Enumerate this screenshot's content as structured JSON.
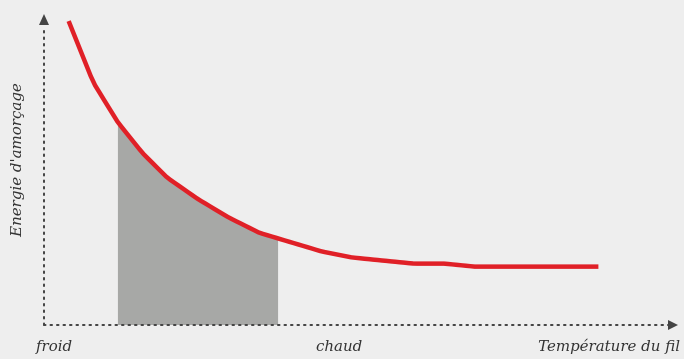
{
  "chart_data": {
    "type": "area",
    "title": "",
    "xlabel": "Température du fil",
    "ylabel": "Energie d'amorçage",
    "x_tick_labels": [
      "froid",
      "chaud"
    ],
    "grid": false,
    "legend": "none",
    "curve": {
      "x": [
        0.04,
        0.08,
        0.12,
        0.16,
        0.2,
        0.25,
        0.3,
        0.35,
        0.4,
        0.45,
        0.5,
        0.55,
        0.6,
        0.65,
        0.7,
        0.75,
        0.8,
        0.85,
        0.9
      ],
      "y": [
        0.99,
        0.79,
        0.66,
        0.56,
        0.48,
        0.41,
        0.35,
        0.3,
        0.27,
        0.24,
        0.22,
        0.21,
        0.2,
        0.2,
        0.19,
        0.19,
        0.19,
        0.19,
        0.19
      ]
    },
    "shaded_range": [
      0.12,
      0.38
    ],
    "colors": {
      "curve": "#e02027",
      "area": "#a7a8a6",
      "axis": "#444444",
      "background": "#eeeeee"
    }
  }
}
